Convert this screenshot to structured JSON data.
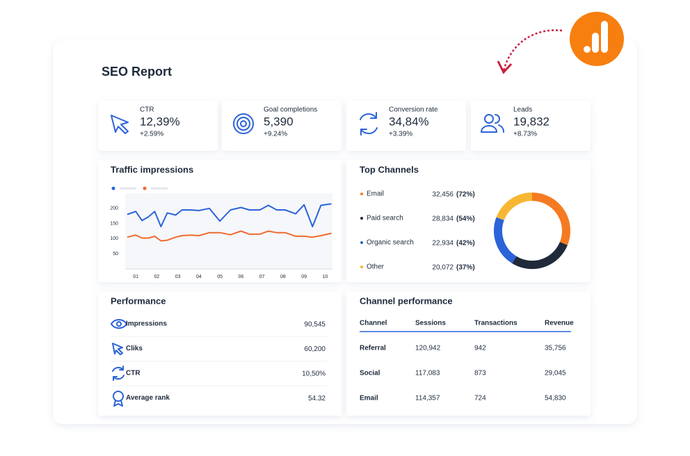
{
  "header": {
    "title": "SEO Report"
  },
  "kpis": [
    {
      "label": "CTR",
      "value": "12,39%",
      "change": "+2.59%"
    },
    {
      "label": "Goal completions",
      "value": "5,390",
      "change": "+9.24%"
    },
    {
      "label": "Conversion rate",
      "value": "34,84%",
      "change": "+3.39%"
    },
    {
      "label": "Leads",
      "value": "19,832",
      "change": "+8.73%"
    }
  ],
  "traffic": {
    "title": "Traffic impressions",
    "chart_data": {
      "type": "line",
      "x": [
        0.6,
        1.0,
        1.3,
        1.6,
        1.9,
        2.2,
        2.5,
        2.9,
        3.2,
        3.6,
        4.0,
        4.5,
        5.0,
        5.5,
        6.0,
        6.4,
        6.9,
        7.3,
        7.7,
        8.1,
        8.6,
        9.0,
        9.4,
        9.8,
        10.3
      ],
      "series": [
        {
          "color": "#2b63d9",
          "values": [
            180,
            190,
            160,
            172,
            190,
            140,
            185,
            178,
            195,
            195,
            193,
            200,
            158,
            195,
            203,
            195,
            195,
            210,
            195,
            195,
            182,
            212,
            140,
            210,
            215
          ]
        },
        {
          "color": "#f26a2e",
          "values": [
            105,
            112,
            102,
            102,
            108,
            93,
            95,
            105,
            110,
            112,
            110,
            120,
            120,
            113,
            125,
            115,
            115,
            125,
            120,
            120,
            108,
            108,
            105,
            110,
            118
          ]
        }
      ],
      "xlim": [
        0.5,
        10.35
      ],
      "xticks": [
        {
          "value": 1,
          "label": "01"
        },
        {
          "value": 2,
          "label": "02"
        },
        {
          "value": 3,
          "label": "03"
        },
        {
          "value": 4,
          "label": "04"
        },
        {
          "value": 5,
          "label": "05"
        },
        {
          "value": 6,
          "label": "06"
        },
        {
          "value": 7,
          "label": "07"
        },
        {
          "value": 8,
          "label": "08"
        },
        {
          "value": 9,
          "label": "09"
        },
        {
          "value": 10,
          "label": "10"
        }
      ],
      "ylim": [
        0,
        250
      ],
      "yticks": [
        50,
        100,
        150,
        200
      ]
    }
  },
  "channels": {
    "title": "Top Channels",
    "chart_data": {
      "type": "donut",
      "items": [
        {
          "name": "Email",
          "value": 32456,
          "value_label": "32,456",
          "share": "(72%)",
          "color": "#f57a22"
        },
        {
          "name": "Paid search",
          "value": 28834,
          "value_label": "28,834",
          "share": "(54%)",
          "color": "#1f2a3a"
        },
        {
          "name": "Organic search",
          "value": 22934,
          "value_label": "22,934",
          "share": "(42%)",
          "color": "#2b63d9"
        },
        {
          "name": "Other",
          "value": 20072,
          "value_label": "20,072",
          "share": "(37%)",
          "color": "#f7b733"
        }
      ]
    }
  },
  "performance": {
    "title": "Performance",
    "rows": [
      {
        "label": "Impressions",
        "value": "90,545"
      },
      {
        "label": "Cliks",
        "value": "60,200"
      },
      {
        "label": "CTR",
        "value": "10,50%"
      },
      {
        "label": "Average rank",
        "value": "54.32"
      }
    ]
  },
  "channel_performance": {
    "title": "Channel performance",
    "columns": [
      "Channel",
      "Sessions",
      "Transactions",
      "Revenue"
    ],
    "rows": [
      [
        "Referral",
        "120,942",
        "942",
        "35,756"
      ],
      [
        "Social",
        "117,083",
        "873",
        "29,045"
      ],
      [
        "Email",
        "114,357",
        "724",
        "54,830"
      ]
    ]
  }
}
